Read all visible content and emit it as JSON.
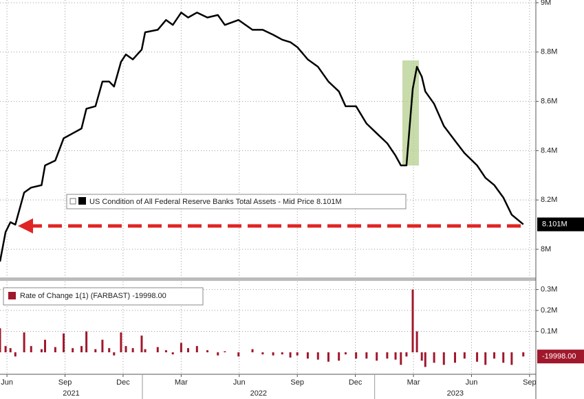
{
  "chart_data": [
    {
      "type": "line",
      "x": [
        2021.387,
        2021.411,
        2021.432,
        2021.453,
        2021.491,
        2021.521,
        2021.566,
        2021.581,
        2021.625,
        2021.661,
        2021.7,
        2021.738,
        2021.759,
        2021.798,
        2021.828,
        2021.857,
        2021.878,
        2021.908,
        2021.929,
        2021.959,
        2021.997,
        2022.012,
        2022.066,
        2022.102,
        2022.131,
        2022.167,
        2022.197,
        2022.235,
        2022.28,
        2022.325,
        2022.355,
        2022.414,
        2022.474,
        2022.518,
        2022.563,
        2022.602,
        2022.637,
        2022.667,
        2022.712,
        2022.756,
        2022.801,
        2022.846,
        2022.875,
        2022.92,
        2022.965,
        2023.009,
        2023.054,
        2023.09,
        2023.113,
        2023.137,
        2023.164,
        2023.182,
        2023.203,
        2023.218,
        2023.256,
        2023.298,
        2023.346,
        2023.387,
        2023.441,
        2023.477,
        2023.515,
        2023.554,
        2023.59,
        2023.64
      ],
      "series": [
        {
          "name": "US Condition of All Federal Reserve Banks Total Assets - Mid Price 8.101M",
          "color": "#000000",
          "values": [
            7950000,
            8070000,
            8110000,
            8100000,
            8230000,
            8250000,
            8260000,
            8340000,
            8360000,
            8450000,
            8470000,
            8490000,
            8570000,
            8580000,
            8680000,
            8680000,
            8660000,
            8760000,
            8790000,
            8770000,
            8810000,
            8880000,
            8890000,
            8930000,
            8910000,
            8960000,
            8940000,
            8960000,
            8940000,
            8950000,
            8910000,
            8930000,
            8890000,
            8890000,
            8870000,
            8850000,
            8840000,
            8820000,
            8770000,
            8740000,
            8680000,
            8640000,
            8580000,
            8580000,
            8510000,
            8470000,
            8430000,
            8380000,
            8340000,
            8340000,
            8650000,
            8740000,
            8700000,
            8640000,
            8590000,
            8500000,
            8440000,
            8390000,
            8340000,
            8290000,
            8260000,
            8210000,
            8140000,
            8101000
          ],
          "value_labels": [
            null,
            null,
            null,
            null,
            null,
            null,
            null,
            null,
            null,
            null,
            null,
            null,
            null,
            null,
            null,
            null,
            null,
            null,
            null,
            null,
            null,
            null,
            null,
            null,
            null,
            null,
            null,
            null,
            null,
            null,
            null,
            null,
            null,
            null,
            null,
            null,
            null,
            null,
            null,
            null,
            null,
            null,
            null,
            null,
            null,
            null,
            null,
            null,
            null,
            null,
            null,
            null,
            null,
            null,
            null,
            null,
            null,
            null,
            null,
            null,
            null,
            null,
            null,
            "8.101M"
          ]
        }
      ],
      "xlim": [
        2021.387,
        2023.694
      ],
      "ylim": [
        7883000,
        9011000
      ],
      "yticks": [
        {
          "value": 8000000,
          "label": "8M"
        },
        {
          "value": 8200000,
          "label": "8.2M"
        },
        {
          "value": 8400000,
          "label": "8.4M"
        },
        {
          "value": 8600000,
          "label": "8.6M"
        },
        {
          "value": 8800000,
          "label": "8.8M"
        },
        {
          "value": 9000000,
          "label": "9M"
        }
      ],
      "grid": true
    },
    {
      "type": "bar",
      "x": [
        2021.387,
        2021.411,
        2021.432,
        2021.453,
        2021.491,
        2021.521,
        2021.566,
        2021.581,
        2021.625,
        2021.661,
        2021.7,
        2021.738,
        2021.759,
        2021.798,
        2021.828,
        2021.857,
        2021.878,
        2021.908,
        2021.929,
        2021.959,
        2021.997,
        2022.012,
        2022.066,
        2022.102,
        2022.131,
        2022.167,
        2022.197,
        2022.235,
        2022.28,
        2022.325,
        2022.355,
        2022.414,
        2022.474,
        2022.518,
        2022.563,
        2022.602,
        2022.637,
        2022.667,
        2022.712,
        2022.756,
        2022.801,
        2022.846,
        2022.875,
        2022.92,
        2022.965,
        2023.009,
        2023.054,
        2023.09,
        2023.113,
        2023.137,
        2023.164,
        2023.182,
        2023.203,
        2023.218,
        2023.256,
        2023.298,
        2023.346,
        2023.387,
        2023.441,
        2023.477,
        2023.515,
        2023.554,
        2023.59,
        2023.64
      ],
      "series": [
        {
          "name": "Rate of Change 1(1) (FARBAST) -19998.00",
          "color": "#a0182c",
          "values": [
            115000,
            30000,
            20000,
            -20000,
            95000,
            30000,
            15000,
            60000,
            25000,
            90000,
            20000,
            30000,
            100000,
            15000,
            60000,
            20000,
            -15000,
            95000,
            30000,
            20000,
            80000,
            15000,
            25000,
            10000,
            -10000,
            45000,
            20000,
            30000,
            10000,
            -15000,
            5000,
            -20000,
            15000,
            -10000,
            -15000,
            -10000,
            -25000,
            -15000,
            -30000,
            -35000,
            -45000,
            -40000,
            -10000,
            -30000,
            -30000,
            -40000,
            -30000,
            -35000,
            -60000,
            -20000,
            300000,
            100000,
            -40000,
            -70000,
            -50000,
            -60000,
            -50000,
            -30000,
            -45000,
            -60000,
            -30000,
            -50000,
            -60000,
            -19998
          ],
          "value_labels": [
            null,
            null,
            null,
            null,
            null,
            null,
            null,
            null,
            null,
            null,
            null,
            null,
            null,
            null,
            null,
            null,
            null,
            null,
            null,
            null,
            null,
            null,
            null,
            null,
            null,
            null,
            null,
            null,
            null,
            null,
            null,
            null,
            null,
            null,
            null,
            null,
            null,
            null,
            null,
            null,
            null,
            null,
            null,
            null,
            null,
            null,
            null,
            null,
            null,
            null,
            null,
            null,
            null,
            null,
            null,
            null,
            null,
            null,
            null,
            null,
            null,
            null,
            null,
            "-19998.00"
          ]
        }
      ],
      "xlim": [
        2021.387,
        2023.694
      ],
      "ylim": [
        -105000,
        338000
      ],
      "yticks": [
        {
          "value": 100000,
          "label": "0.1M"
        },
        {
          "value": 200000,
          "label": "0.2M"
        },
        {
          "value": 300000,
          "label": "0.3M"
        }
      ],
      "xticks": [
        {
          "value": 2021.417,
          "label": "Jun"
        },
        {
          "value": 2021.667,
          "label": "Sep"
        },
        {
          "value": 2021.917,
          "label": "Dec"
        },
        {
          "value": 2022.167,
          "label": "Mar"
        },
        {
          "value": 2022.417,
          "label": "Jun"
        },
        {
          "value": 2022.667,
          "label": "Sep"
        },
        {
          "value": 2022.917,
          "label": "Dec"
        },
        {
          "value": 2023.167,
          "label": "Mar"
        },
        {
          "value": 2023.417,
          "label": "Jun"
        },
        {
          "value": 2023.667,
          "label": "Sep"
        }
      ],
      "year_ticks": [
        {
          "value": 2021,
          "label": "2021"
        },
        {
          "value": 2022,
          "label": "2022"
        },
        {
          "value": 2023,
          "label": "2023"
        }
      ],
      "grid": true
    }
  ]
}
